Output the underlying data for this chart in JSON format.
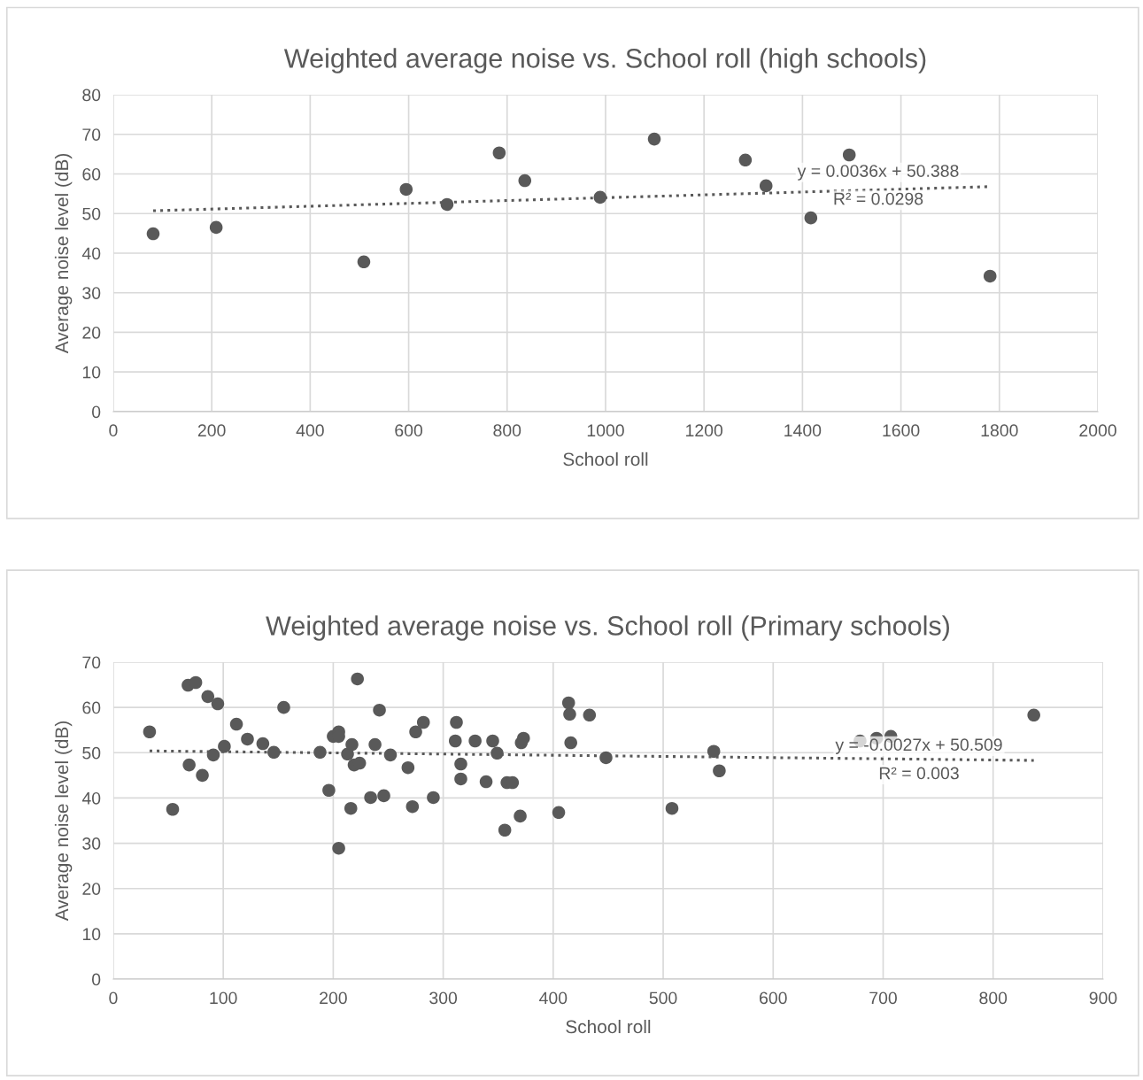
{
  "chart_data": [
    {
      "type": "scatter",
      "title": "Weighted average noise vs. School roll (high schools)",
      "xlabel": "School roll",
      "ylabel": "Average noise level (dB)",
      "xlim": [
        0,
        2000
      ],
      "xticks": [
        0,
        200,
        400,
        600,
        800,
        1000,
        1200,
        1400,
        1600,
        1800,
        2000
      ],
      "ylim": [
        0,
        80
      ],
      "yticks": [
        0,
        10,
        20,
        30,
        40,
        50,
        60,
        70,
        80
      ],
      "grid": true,
      "series": [
        {
          "type": "scatter",
          "marker": "circle",
          "color": "#595959",
          "x": [
            81,
            209,
            509,
            595,
            678,
            784,
            836,
            989,
            1099,
            1284,
            1326,
            1417,
            1495,
            1781
          ],
          "values": [
            44.9,
            46.5,
            37.8,
            56.1,
            52.3,
            65.3,
            58.3,
            54.1,
            68.8,
            63.5,
            57.0,
            48.9,
            64.8,
            34.2
          ]
        },
        {
          "type": "line",
          "line_style": "dotted",
          "color": "#595959",
          "x": [
            81,
            1781
          ],
          "values": [
            50.7,
            56.8
          ]
        }
      ],
      "annotations": [
        "y = 0.0036x + 50.388",
        "R² = 0.0298"
      ]
    },
    {
      "type": "scatter",
      "title": "Weighted average noise vs. School roll (Primary schools)",
      "xlabel": "School roll",
      "ylabel": "Average noise level (dB)",
      "xlim": [
        0,
        900
      ],
      "xticks": [
        0,
        100,
        200,
        300,
        400,
        500,
        600,
        700,
        800,
        900
      ],
      "ylim": [
        0,
        70
      ],
      "yticks": [
        0,
        10,
        20,
        30,
        40,
        50,
        60,
        70
      ],
      "grid": true,
      "series": [
        {
          "type": "scatter",
          "marker": "circle",
          "color": "#595959",
          "x": [
            33,
            54,
            68,
            69,
            75,
            81,
            86,
            91,
            95,
            101,
            112,
            122,
            136,
            146,
            155,
            188,
            196,
            200,
            205,
            205,
            205,
            213,
            216,
            217,
            219,
            222,
            224,
            234,
            238,
            242,
            246,
            252,
            268,
            272,
            275,
            282,
            291,
            311,
            312,
            316,
            316,
            329,
            339,
            345,
            349,
            356,
            358,
            363,
            370,
            371,
            373,
            405,
            414,
            415,
            416,
            433,
            448,
            508,
            546,
            551,
            679,
            694,
            707,
            837
          ],
          "values": [
            54.6,
            37.5,
            64.9,
            47.3,
            65.5,
            45.0,
            62.4,
            49.5,
            60.8,
            51.4,
            56.3,
            53.0,
            52.0,
            50.1,
            60.0,
            50.1,
            41.7,
            53.6,
            54.6,
            53.6,
            28.9,
            49.7,
            37.7,
            51.8,
            47.3,
            66.3,
            47.7,
            40.1,
            51.8,
            59.4,
            40.5,
            49.5,
            46.7,
            38.1,
            54.6,
            56.7,
            40.1,
            52.6,
            56.7,
            47.5,
            44.2,
            52.6,
            43.6,
            52.6,
            49.9,
            32.9,
            43.4,
            43.4,
            36.0,
            52.2,
            53.2,
            36.8,
            61.0,
            58.5,
            52.2,
            58.3,
            48.9,
            37.7,
            50.3,
            46.0,
            52.6,
            53.2,
            53.6,
            58.3
          ]
        },
        {
          "type": "line",
          "line_style": "dotted",
          "color": "#595959",
          "x": [
            33,
            837
          ],
          "values": [
            50.4,
            48.3
          ]
        }
      ],
      "annotations": [
        "y = -0.0027x + 50.509",
        "R² = 0.003"
      ]
    }
  ]
}
